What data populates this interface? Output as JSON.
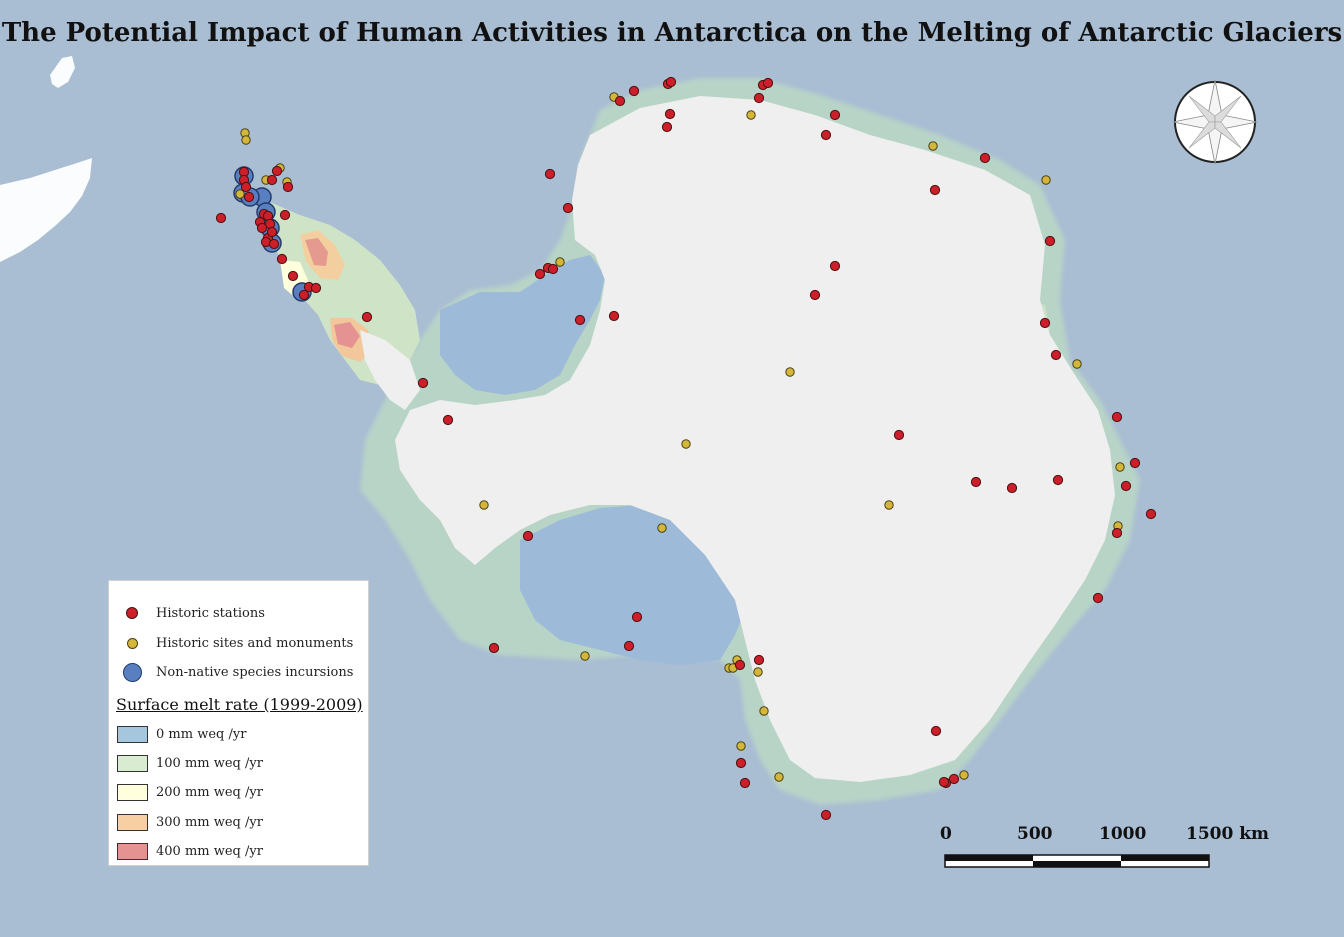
{
  "title": "The Potential Impact of Human Activities in Antarctica on the Melting of Antarctic Glaciers",
  "colors": {
    "ocean": "#a9bdd3",
    "ice": "#efefef",
    "shelf_blue": "#9dbad8",
    "melt_0": "#a6c6de",
    "melt_100": "#d9ecd2",
    "melt_200": "#fffedd",
    "melt_300": "#f8cfa3",
    "melt_400": "#e49292",
    "station": "#cc1f2a",
    "site": "#d4b63a",
    "species": "#5a7fc0"
  },
  "legend": {
    "items": [
      {
        "label": "Historic stations",
        "symbol": "red-dot"
      },
      {
        "label": "Historic sites and monuments",
        "symbol": "yellow-dot"
      },
      {
        "label": "Non-native species incursions",
        "symbol": "blue-circle"
      }
    ],
    "melt_heading": "Surface melt rate (1999-2009)",
    "melt_classes": [
      {
        "label": "0 mm weq /yr",
        "color": "#a6c6de"
      },
      {
        "label": "100 mm weq /yr",
        "color": "#d9ecd2"
      },
      {
        "label": "200 mm weq /yr",
        "color": "#fffedd"
      },
      {
        "label": "300 mm weq /yr",
        "color": "#f8cfa3"
      },
      {
        "label": "400 mm weq /yr",
        "color": "#e49292"
      }
    ]
  },
  "scale_bar": {
    "labels": [
      "0",
      "500",
      "1000",
      "1500 km"
    ]
  },
  "compass": {
    "icon": "compass-rose-icon"
  }
}
